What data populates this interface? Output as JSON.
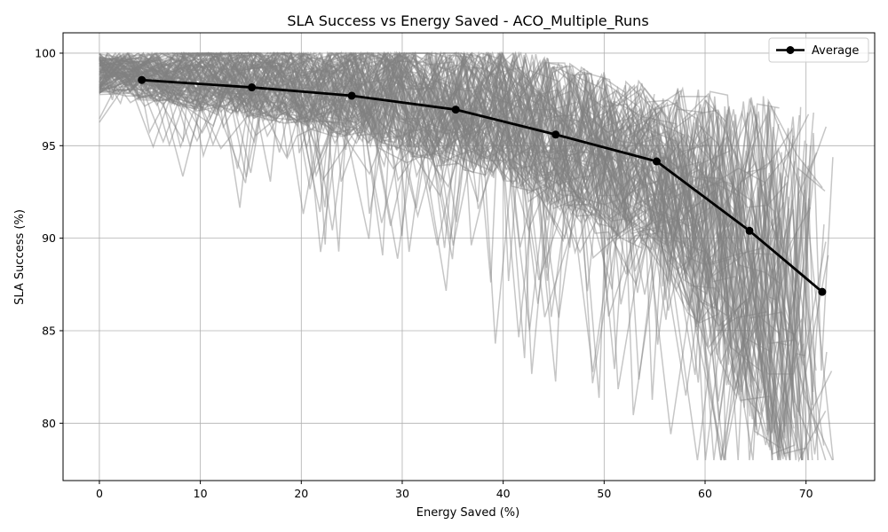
{
  "chart_data": {
    "type": "line",
    "title": "SLA Success vs Energy Saved - ACO_Multiple_Runs",
    "xlabel": "Energy Saved (%)",
    "ylabel": "SLA Success (%)",
    "xlim": [
      -3.6,
      76.8
    ],
    "ylim": [
      76.9,
      101.1
    ],
    "xticks": [
      0,
      10,
      20,
      30,
      40,
      50,
      60,
      70
    ],
    "yticks": [
      80,
      85,
      90,
      95,
      100
    ],
    "grid": true,
    "legend_position": "top-right",
    "series": [
      {
        "name": "Average",
        "color": "#000000",
        "marker": "circle",
        "x": [
          4.2,
          15.1,
          25.0,
          35.3,
          45.2,
          55.2,
          64.4,
          71.6
        ],
        "y": [
          98.55,
          98.15,
          97.7,
          96.95,
          95.6,
          94.15,
          90.4,
          87.1
        ]
      }
    ],
    "background_runs": {
      "description_of_band": "individual runs",
      "color": "#808080",
      "opacity": 0.45,
      "count": 120,
      "x_start": 0,
      "x_end": 73
    }
  }
}
